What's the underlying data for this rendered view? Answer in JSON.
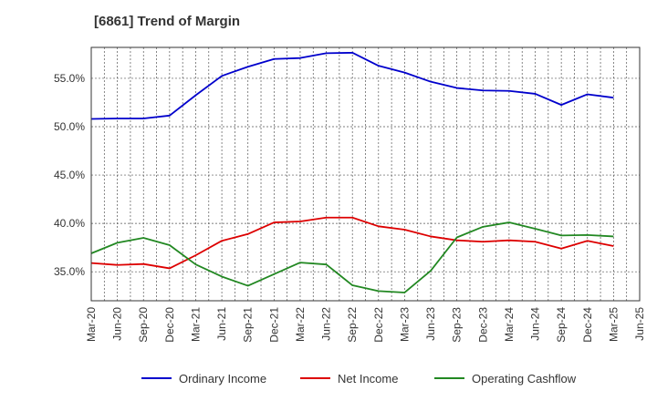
{
  "chart_data": {
    "type": "line",
    "title": "[6861]  Trend of Margin",
    "xlabel": "",
    "ylabel": "",
    "ylim": [
      32,
      58.2
    ],
    "yticks": [
      35,
      40,
      45,
      50,
      55
    ],
    "ytick_labels": [
      "35.0%",
      "40.0%",
      "45.0%",
      "50.0%",
      "55.0%"
    ],
    "categories": [
      "Mar-20",
      "Jun-20",
      "Sep-20",
      "Dec-20",
      "Mar-21",
      "Jun-21",
      "Sep-21",
      "Dec-21",
      "Mar-22",
      "Jun-22",
      "Sep-22",
      "Dec-22",
      "Mar-23",
      "Jun-23",
      "Sep-23",
      "Dec-23",
      "Mar-24",
      "Jun-24",
      "Sep-24",
      "Dec-24",
      "Mar-25",
      "Jun-25"
    ],
    "grid": true,
    "legend_position": "bottom",
    "series": [
      {
        "name": "Ordinary Income",
        "color": "#0000cc",
        "values": [
          50.8,
          50.85,
          50.85,
          51.15,
          53.25,
          55.25,
          56.2,
          57.0,
          57.1,
          57.6,
          57.65,
          56.3,
          55.6,
          54.65,
          54.0,
          53.75,
          53.7,
          53.4,
          52.25,
          53.35,
          53.0,
          null
        ]
      },
      {
        "name": "Net Income",
        "color": "#dd0000",
        "values": [
          35.9,
          35.7,
          35.8,
          35.35,
          36.7,
          38.2,
          38.9,
          40.1,
          40.2,
          40.6,
          40.6,
          39.7,
          39.35,
          38.65,
          38.25,
          38.1,
          38.25,
          38.1,
          37.4,
          38.2,
          37.65,
          null
        ]
      },
      {
        "name": "Operating Cashflow",
        "color": "#228822",
        "values": [
          36.9,
          38.0,
          38.5,
          37.75,
          35.75,
          34.5,
          33.55,
          34.75,
          35.95,
          35.75,
          33.6,
          33.0,
          32.85,
          35.1,
          38.55,
          39.65,
          40.1,
          39.45,
          38.75,
          38.8,
          38.65,
          null
        ]
      }
    ]
  }
}
